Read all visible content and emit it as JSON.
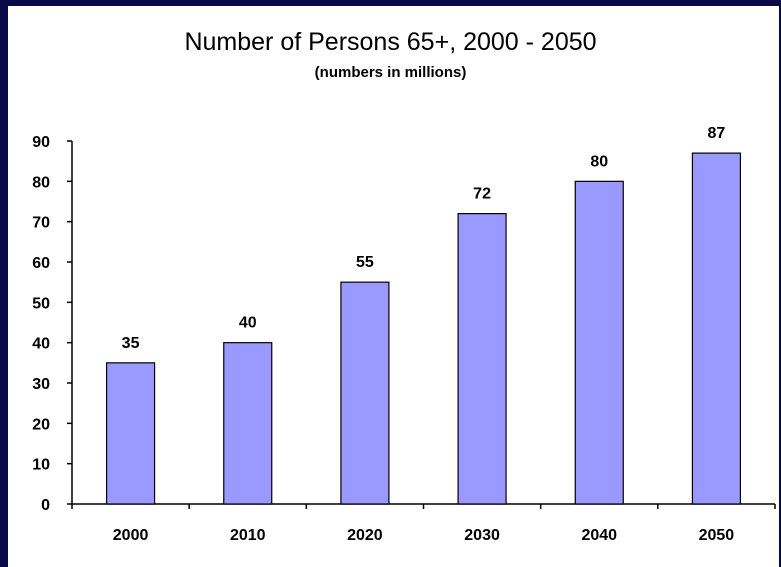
{
  "header": {
    "title": "Number of Persons 65+, 2000 - 2050",
    "subtitle": "(numbers in millions)"
  },
  "colors": {
    "bar_fill": "#9999ff",
    "bar_stroke": "#000000",
    "frame": "#0a0a4a"
  },
  "chart_data": {
    "type": "bar",
    "title": "Number of Persons 65+, 2000 - 2050",
    "subtitle": "(numbers in millions)",
    "categories": [
      "2000",
      "2010",
      "2020",
      "2030",
      "2040",
      "2050"
    ],
    "values": [
      35,
      40,
      55,
      72,
      80,
      87
    ],
    "data_labels": [
      "35",
      "40",
      "55",
      "72",
      "80",
      "87"
    ],
    "ylim": [
      0,
      90
    ],
    "yticks": [
      0,
      10,
      20,
      30,
      40,
      50,
      60,
      70,
      80,
      90
    ],
    "xlabel": "",
    "ylabel": "",
    "grid": false,
    "legend": "none"
  }
}
